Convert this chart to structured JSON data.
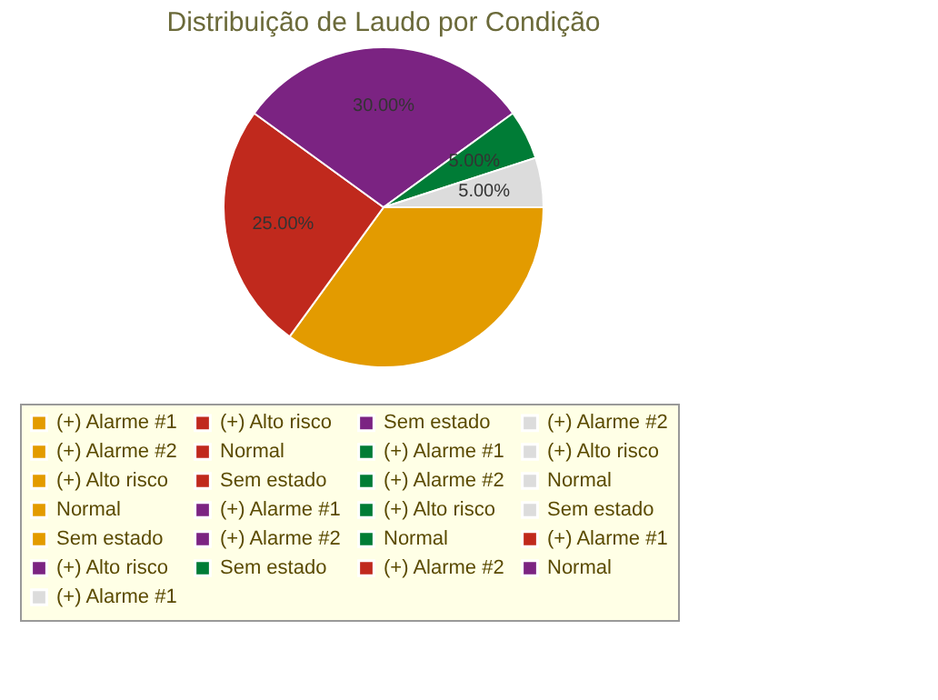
{
  "chart_data": {
    "type": "pie",
    "title": "Distribuição de Laudo por Condição",
    "categories": [
      "(+) Alarme #1",
      "(+) Alarme #2",
      "(+) Alto risco",
      "Normal",
      "Sem estado",
      "(+) Alarme #1",
      "(+) Alarme #2",
      "(+) Alto risco",
      "Normal",
      "Sem estado",
      "(+) Alarme #1",
      "(+) Alarme #2",
      "(+) Alto risco",
      "Normal",
      "Sem estado",
      "(+) Alarme #1",
      "(+) Alarme #2",
      "(+) Alto risco",
      "Normal",
      "Sem estado",
      "(+) Alarme #1",
      "(+) Alarme #2",
      "(+) Alto risco",
      "Normal",
      "Sem estado"
    ],
    "values": [
      35,
      0,
      0,
      0,
      0,
      25,
      0,
      0,
      0,
      0,
      30,
      0,
      0,
      0,
      0,
      5,
      0,
      0,
      0,
      0,
      5,
      0,
      0,
      0,
      0
    ],
    "colors": [
      "#e39b00",
      "#e39b00",
      "#e39b00",
      "#e39b00",
      "#e39b00",
      "#c0291d",
      "#c0291d",
      "#c0291d",
      "#c0291d",
      "#c0291d",
      "#7b2382",
      "#7b2382",
      "#7b2382",
      "#7b2382",
      "#7b2382",
      "#007c36",
      "#007c36",
      "#007c36",
      "#007c36",
      "#007c36",
      "#dcdcdc",
      "#dcdcdc",
      "#dcdcdc",
      "#dcdcdc",
      "#dcdcdc"
    ],
    "value_labels": [
      null,
      null,
      null,
      null,
      null,
      "25.00%",
      null,
      null,
      null,
      null,
      "30.00%",
      null,
      null,
      null,
      null,
      "5.00%",
      null,
      null,
      null,
      null,
      "5.00%",
      null,
      null,
      null,
      null
    ],
    "legend": "bottom"
  }
}
